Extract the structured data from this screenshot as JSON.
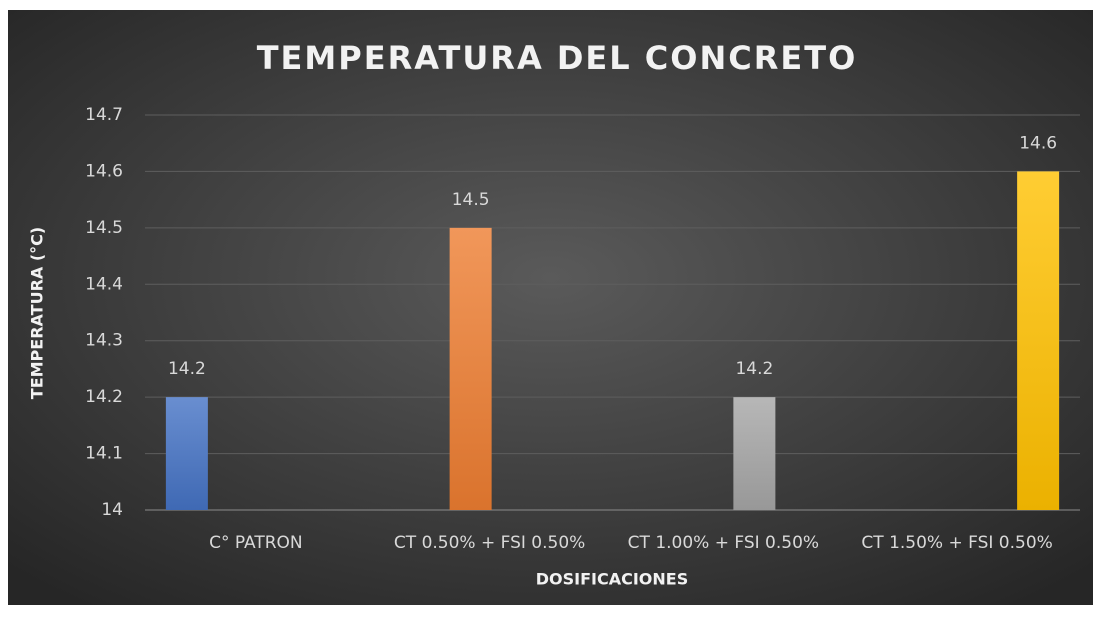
{
  "chart_data": {
    "type": "bar",
    "title": "TEMPERATURA DEL CONCRETO",
    "x_label": "DOSIFICACIONES",
    "y_label": "TEMPERATURA (°C)",
    "categories": [
      "C° PATRON",
      "CT 0.50% + FSI 0.50%",
      "CT 1.00% + FSI 0.50%",
      "CT 1.50% + FSI 0.50%"
    ],
    "values": [
      14.2,
      14.5,
      14.2,
      14.6
    ],
    "colors": [
      "#4472c4",
      "#ed7d31",
      "#a5a5a5",
      "#ffc000"
    ],
    "ylim": [
      14,
      14.7
    ],
    "yticks": [
      14,
      14.1,
      14.2,
      14.3,
      14.4,
      14.5,
      14.6,
      14.7
    ],
    "grid": true
  }
}
